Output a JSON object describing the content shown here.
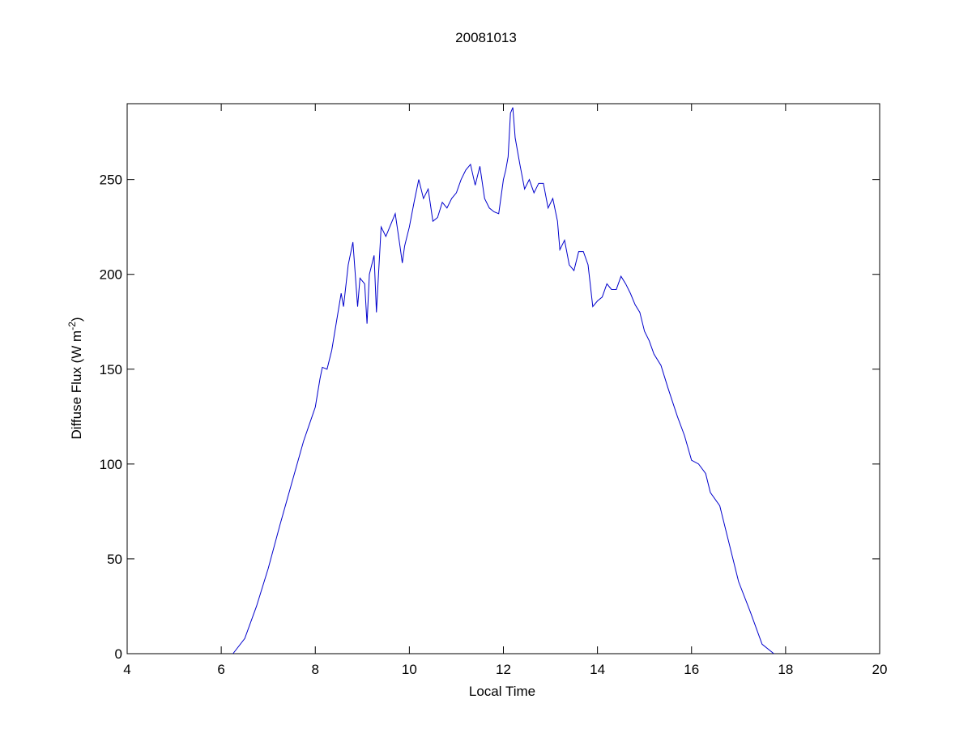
{
  "chart_data": {
    "type": "line",
    "title": "20081013",
    "xlabel": "Local Time",
    "ylabel": {
      "text": "Diffuse Flux (W m",
      "superscript": "-2",
      "suffix": ")"
    },
    "xlim": [
      4,
      20
    ],
    "xticks": [
      4,
      6,
      8,
      10,
      12,
      14,
      16,
      18,
      20
    ],
    "ylim": [
      0,
      290
    ],
    "yticks": [
      0,
      50,
      100,
      150,
      200,
      250
    ],
    "grid": false,
    "series": [
      {
        "color": "#0000cc",
        "x": [
          6.25,
          6.5,
          6.75,
          7.0,
          7.25,
          7.5,
          7.75,
          8.0,
          8.1,
          8.15,
          8.25,
          8.35,
          8.45,
          8.55,
          8.6,
          8.7,
          8.8,
          8.9,
          8.95,
          9.05,
          9.1,
          9.15,
          9.25,
          9.3,
          9.4,
          9.5,
          9.6,
          9.7,
          9.8,
          9.85,
          9.9,
          10.0,
          10.1,
          10.2,
          10.3,
          10.4,
          10.5,
          10.6,
          10.7,
          10.8,
          10.9,
          11.0,
          11.1,
          11.2,
          11.3,
          11.4,
          11.5,
          11.6,
          11.7,
          11.8,
          11.9,
          12.0,
          12.05,
          12.1,
          12.15,
          12.2,
          12.25,
          12.35,
          12.45,
          12.55,
          12.65,
          12.75,
          12.85,
          12.95,
          13.05,
          13.15,
          13.2,
          13.3,
          13.4,
          13.5,
          13.6,
          13.7,
          13.8,
          13.9,
          14.0,
          14.1,
          14.2,
          14.3,
          14.4,
          14.5,
          14.6,
          14.7,
          14.8,
          14.9,
          15.0,
          15.1,
          15.2,
          15.35,
          15.5,
          15.7,
          15.85,
          16.0,
          16.15,
          16.3,
          16.4,
          16.6,
          16.75,
          17.0,
          17.25,
          17.5,
          17.75
        ],
        "values": [
          0,
          8,
          25,
          45,
          68,
          90,
          112,
          130,
          145,
          151,
          150,
          160,
          175,
          190,
          183,
          205,
          217,
          183,
          198,
          195,
          174,
          200,
          210,
          180,
          225,
          220,
          226,
          232,
          215,
          206,
          215,
          225,
          238,
          250,
          240,
          245,
          228,
          230,
          238,
          235,
          240,
          243,
          250,
          255,
          258,
          247,
          257,
          240,
          235,
          233,
          232,
          250,
          255,
          262,
          285,
          288,
          272,
          258,
          245,
          250,
          243,
          248,
          248,
          235,
          240,
          228,
          213,
          218,
          205,
          202,
          212,
          212,
          205,
          183,
          186,
          188,
          195,
          192,
          192,
          199,
          195,
          190,
          184,
          180,
          170,
          165,
          158,
          152,
          140,
          125,
          115,
          102,
          100,
          95,
          85,
          78,
          63,
          38,
          22,
          5,
          0
        ]
      }
    ]
  }
}
